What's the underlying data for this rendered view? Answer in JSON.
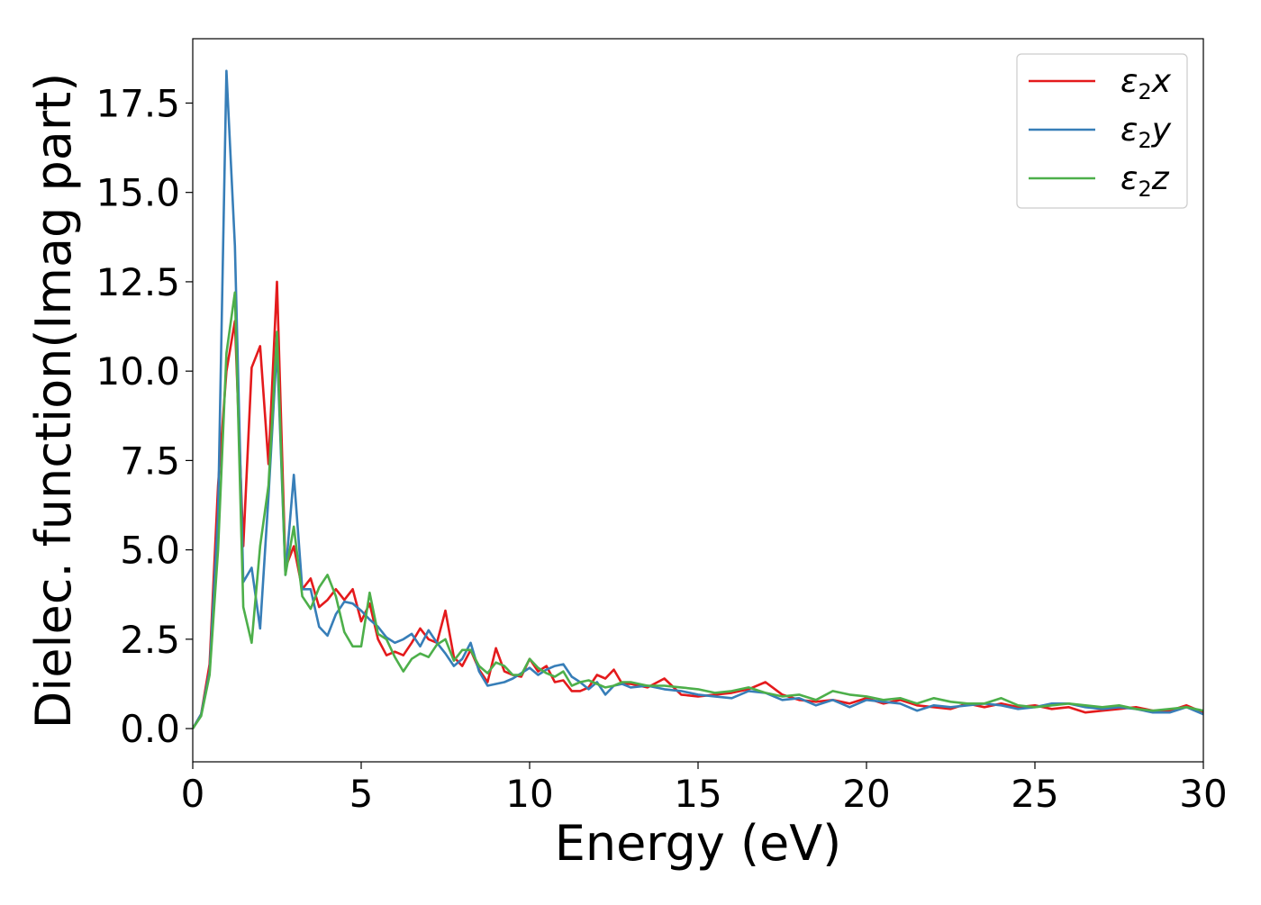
{
  "chart_data": {
    "type": "line",
    "title": "",
    "xlabel": "Energy (eV)",
    "ylabel": "Dielec. function(Imag part)",
    "xlim": [
      0,
      30
    ],
    "ylim": [
      -0.93,
      19.3
    ],
    "xticks": [
      0,
      5,
      10,
      15,
      20,
      25,
      30
    ],
    "xtick_labels": [
      "0",
      "5",
      "10",
      "15",
      "20",
      "25",
      "30"
    ],
    "yticks": [
      0.0,
      2.5,
      5.0,
      7.5,
      10.0,
      12.5,
      15.0,
      17.5
    ],
    "ytick_labels": [
      "0.0",
      "2.5",
      "5.0",
      "7.5",
      "10.0",
      "12.5",
      "15.0",
      "17.5"
    ],
    "grid": false,
    "legend_position": "top-right",
    "series": [
      {
        "name": "ε₂x",
        "legend_base": "ε",
        "legend_sub": "2",
        "legend_axis": "x",
        "color": "#e41a1c",
        "points": [
          [
            0,
            0
          ],
          [
            0.25,
            0.4
          ],
          [
            0.5,
            1.8
          ],
          [
            0.75,
            6.8
          ],
          [
            1.0,
            10.0
          ],
          [
            1.25,
            11.4
          ],
          [
            1.5,
            5.1
          ],
          [
            1.75,
            10.1
          ],
          [
            2.0,
            10.7
          ],
          [
            2.25,
            7.4
          ],
          [
            2.5,
            12.5
          ],
          [
            2.75,
            4.5
          ],
          [
            3.0,
            5.1
          ],
          [
            3.25,
            3.9
          ],
          [
            3.5,
            4.2
          ],
          [
            3.75,
            3.4
          ],
          [
            4.0,
            3.6
          ],
          [
            4.25,
            3.9
          ],
          [
            4.5,
            3.6
          ],
          [
            4.75,
            3.9
          ],
          [
            5.0,
            3.0
          ],
          [
            5.25,
            3.5
          ],
          [
            5.5,
            2.5
          ],
          [
            5.75,
            2.05
          ],
          [
            6.0,
            2.15
          ],
          [
            6.25,
            2.05
          ],
          [
            6.5,
            2.4
          ],
          [
            6.75,
            2.8
          ],
          [
            7.0,
            2.5
          ],
          [
            7.25,
            2.4
          ],
          [
            7.5,
            3.3
          ],
          [
            7.75,
            2.0
          ],
          [
            8.0,
            1.75
          ],
          [
            8.25,
            2.2
          ],
          [
            8.5,
            1.65
          ],
          [
            8.75,
            1.3
          ],
          [
            9.0,
            2.25
          ],
          [
            9.25,
            1.6
          ],
          [
            9.5,
            1.5
          ],
          [
            9.75,
            1.45
          ],
          [
            10.0,
            1.95
          ],
          [
            10.25,
            1.6
          ],
          [
            10.5,
            1.75
          ],
          [
            10.75,
            1.3
          ],
          [
            11.0,
            1.35
          ],
          [
            11.25,
            1.05
          ],
          [
            11.5,
            1.05
          ],
          [
            11.75,
            1.15
          ],
          [
            12.0,
            1.5
          ],
          [
            12.25,
            1.4
          ],
          [
            12.5,
            1.65
          ],
          [
            12.75,
            1.25
          ],
          [
            13.0,
            1.25
          ],
          [
            13.5,
            1.15
          ],
          [
            14.0,
            1.4
          ],
          [
            14.5,
            0.95
          ],
          [
            15.0,
            0.9
          ],
          [
            15.5,
            0.95
          ],
          [
            16.0,
            1.0
          ],
          [
            16.5,
            1.1
          ],
          [
            17.0,
            1.3
          ],
          [
            17.5,
            0.95
          ],
          [
            18.0,
            0.8
          ],
          [
            18.5,
            0.75
          ],
          [
            19.0,
            0.8
          ],
          [
            19.5,
            0.7
          ],
          [
            20.0,
            0.85
          ],
          [
            20.5,
            0.7
          ],
          [
            21.0,
            0.8
          ],
          [
            21.5,
            0.65
          ],
          [
            22.0,
            0.6
          ],
          [
            22.5,
            0.55
          ],
          [
            23.0,
            0.7
          ],
          [
            23.5,
            0.6
          ],
          [
            24.0,
            0.7
          ],
          [
            24.5,
            0.6
          ],
          [
            25.0,
            0.65
          ],
          [
            25.5,
            0.55
          ],
          [
            26.0,
            0.6
          ],
          [
            26.5,
            0.45
          ],
          [
            27.0,
            0.5
          ],
          [
            27.5,
            0.55
          ],
          [
            28.0,
            0.6
          ],
          [
            28.5,
            0.5
          ],
          [
            29.0,
            0.5
          ],
          [
            29.5,
            0.65
          ],
          [
            30.0,
            0.45
          ]
        ]
      },
      {
        "name": "ε₂y",
        "legend_base": "ε",
        "legend_sub": "2",
        "legend_axis": "y",
        "color": "#377eb8",
        "points": [
          [
            0,
            0
          ],
          [
            0.25,
            0.4
          ],
          [
            0.5,
            1.6
          ],
          [
            0.75,
            6.0
          ],
          [
            1.0,
            18.4
          ],
          [
            1.25,
            13.5
          ],
          [
            1.5,
            4.1
          ],
          [
            1.75,
            4.5
          ],
          [
            2.0,
            2.8
          ],
          [
            2.25,
            6.5
          ],
          [
            2.5,
            10.7
          ],
          [
            2.75,
            4.3
          ],
          [
            3.0,
            7.1
          ],
          [
            3.25,
            3.9
          ],
          [
            3.5,
            3.9
          ],
          [
            3.75,
            2.85
          ],
          [
            4.0,
            2.6
          ],
          [
            4.25,
            3.2
          ],
          [
            4.5,
            3.55
          ],
          [
            4.75,
            3.5
          ],
          [
            5.0,
            3.3
          ],
          [
            5.25,
            3.05
          ],
          [
            5.5,
            2.85
          ],
          [
            5.75,
            2.55
          ],
          [
            6.0,
            2.4
          ],
          [
            6.25,
            2.5
          ],
          [
            6.5,
            2.65
          ],
          [
            6.75,
            2.3
          ],
          [
            7.0,
            2.75
          ],
          [
            7.25,
            2.4
          ],
          [
            7.5,
            2.1
          ],
          [
            7.75,
            1.75
          ],
          [
            8.0,
            1.95
          ],
          [
            8.25,
            2.4
          ],
          [
            8.5,
            1.6
          ],
          [
            8.75,
            1.2
          ],
          [
            9.0,
            1.25
          ],
          [
            9.25,
            1.3
          ],
          [
            9.5,
            1.4
          ],
          [
            9.75,
            1.55
          ],
          [
            10.0,
            1.7
          ],
          [
            10.25,
            1.5
          ],
          [
            10.5,
            1.65
          ],
          [
            10.75,
            1.75
          ],
          [
            11.0,
            1.8
          ],
          [
            11.25,
            1.45
          ],
          [
            11.5,
            1.3
          ],
          [
            11.75,
            1.1
          ],
          [
            12.0,
            1.3
          ],
          [
            12.25,
            0.95
          ],
          [
            12.5,
            1.2
          ],
          [
            12.75,
            1.25
          ],
          [
            13.0,
            1.15
          ],
          [
            13.5,
            1.2
          ],
          [
            14.0,
            1.1
          ],
          [
            14.5,
            1.05
          ],
          [
            15.0,
            0.95
          ],
          [
            15.5,
            0.9
          ],
          [
            16.0,
            0.85
          ],
          [
            16.5,
            1.05
          ],
          [
            17.0,
            1.0
          ],
          [
            17.5,
            0.8
          ],
          [
            18.0,
            0.85
          ],
          [
            18.5,
            0.65
          ],
          [
            19.0,
            0.8
          ],
          [
            19.5,
            0.6
          ],
          [
            20.0,
            0.8
          ],
          [
            20.5,
            0.75
          ],
          [
            21.0,
            0.7
          ],
          [
            21.5,
            0.5
          ],
          [
            22.0,
            0.65
          ],
          [
            22.5,
            0.6
          ],
          [
            23.0,
            0.65
          ],
          [
            23.5,
            0.7
          ],
          [
            24.0,
            0.65
          ],
          [
            24.5,
            0.55
          ],
          [
            25.0,
            0.6
          ],
          [
            25.5,
            0.7
          ],
          [
            26.0,
            0.7
          ],
          [
            26.5,
            0.6
          ],
          [
            27.0,
            0.55
          ],
          [
            27.5,
            0.6
          ],
          [
            28.0,
            0.55
          ],
          [
            28.5,
            0.45
          ],
          [
            29.0,
            0.45
          ],
          [
            29.5,
            0.6
          ],
          [
            30.0,
            0.4
          ]
        ]
      },
      {
        "name": "ε₂z",
        "legend_base": "ε",
        "legend_sub": "2",
        "legend_axis": "z",
        "color": "#4daf4a",
        "points": [
          [
            0,
            0
          ],
          [
            0.25,
            0.35
          ],
          [
            0.5,
            1.5
          ],
          [
            0.75,
            5.0
          ],
          [
            1.0,
            10.5
          ],
          [
            1.25,
            12.2
          ],
          [
            1.5,
            3.4
          ],
          [
            1.75,
            2.4
          ],
          [
            2.0,
            5.1
          ],
          [
            2.25,
            6.8
          ],
          [
            2.5,
            11.1
          ],
          [
            2.75,
            4.3
          ],
          [
            3.0,
            5.65
          ],
          [
            3.25,
            3.7
          ],
          [
            3.5,
            3.35
          ],
          [
            3.75,
            3.95
          ],
          [
            4.0,
            4.3
          ],
          [
            4.25,
            3.7
          ],
          [
            4.5,
            2.7
          ],
          [
            4.75,
            2.3
          ],
          [
            5.0,
            2.3
          ],
          [
            5.25,
            3.8
          ],
          [
            5.5,
            2.65
          ],
          [
            5.75,
            2.5
          ],
          [
            6.0,
            2.0
          ],
          [
            6.25,
            1.6
          ],
          [
            6.5,
            1.95
          ],
          [
            6.75,
            2.1
          ],
          [
            7.0,
            2.0
          ],
          [
            7.25,
            2.35
          ],
          [
            7.5,
            2.5
          ],
          [
            7.75,
            1.9
          ],
          [
            8.0,
            2.2
          ],
          [
            8.25,
            2.2
          ],
          [
            8.5,
            1.75
          ],
          [
            8.75,
            1.55
          ],
          [
            9.0,
            1.85
          ],
          [
            9.25,
            1.75
          ],
          [
            9.5,
            1.5
          ],
          [
            9.75,
            1.5
          ],
          [
            10.0,
            1.95
          ],
          [
            10.25,
            1.7
          ],
          [
            10.5,
            1.55
          ],
          [
            10.75,
            1.45
          ],
          [
            11.0,
            1.6
          ],
          [
            11.25,
            1.2
          ],
          [
            11.5,
            1.3
          ],
          [
            11.75,
            1.35
          ],
          [
            12.0,
            1.25
          ],
          [
            12.25,
            1.15
          ],
          [
            12.5,
            1.2
          ],
          [
            12.75,
            1.3
          ],
          [
            13.0,
            1.3
          ],
          [
            13.5,
            1.2
          ],
          [
            14.0,
            1.2
          ],
          [
            14.5,
            1.15
          ],
          [
            15.0,
            1.1
          ],
          [
            15.5,
            1.0
          ],
          [
            16.0,
            1.05
          ],
          [
            16.5,
            1.15
          ],
          [
            17.0,
            1.0
          ],
          [
            17.5,
            0.9
          ],
          [
            18.0,
            0.95
          ],
          [
            18.5,
            0.8
          ],
          [
            19.0,
            1.05
          ],
          [
            19.5,
            0.95
          ],
          [
            20.0,
            0.9
          ],
          [
            20.5,
            0.8
          ],
          [
            21.0,
            0.85
          ],
          [
            21.5,
            0.7
          ],
          [
            22.0,
            0.85
          ],
          [
            22.5,
            0.75
          ],
          [
            23.0,
            0.7
          ],
          [
            23.5,
            0.7
          ],
          [
            24.0,
            0.85
          ],
          [
            24.5,
            0.65
          ],
          [
            25.0,
            0.6
          ],
          [
            25.5,
            0.65
          ],
          [
            26.0,
            0.7
          ],
          [
            26.5,
            0.65
          ],
          [
            27.0,
            0.6
          ],
          [
            27.5,
            0.65
          ],
          [
            28.0,
            0.55
          ],
          [
            28.5,
            0.5
          ],
          [
            29.0,
            0.55
          ],
          [
            29.5,
            0.6
          ],
          [
            30.0,
            0.5
          ]
        ]
      }
    ]
  }
}
